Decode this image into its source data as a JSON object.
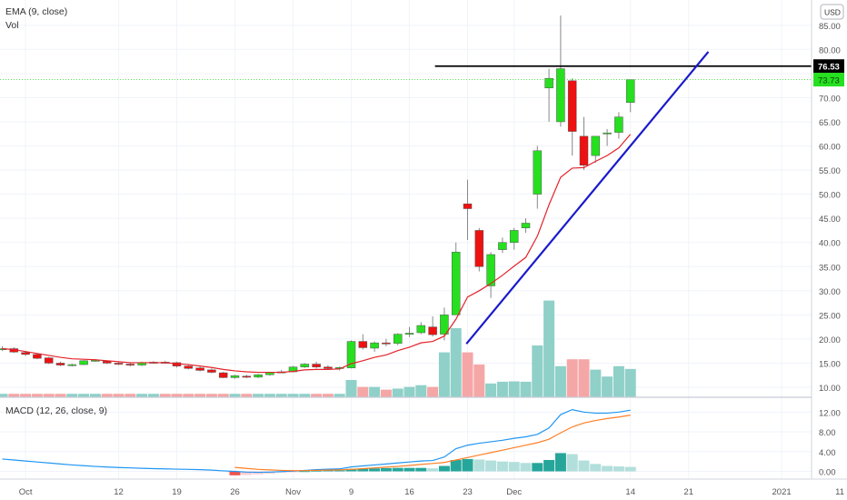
{
  "main_legend": [
    "EMA (9, close)",
    "Vol"
  ],
  "macd_legend": "MACD (12, 26, close, 9)",
  "currency_button": "USD",
  "price_axis": {
    "ticks": [
      "85.00",
      "80.00",
      "75.00",
      "70.00",
      "65.00",
      "60.00",
      "55.00",
      "50.00",
      "45.00",
      "40.00",
      "35.00",
      "30.00",
      "25.00",
      "20.00",
      "15.00",
      "10.00"
    ],
    "last_close_label": "73.73",
    "hline_label": "76.53"
  },
  "macd_axis": {
    "ticks": [
      "12.00",
      "8.00",
      "4.00",
      "0.00"
    ]
  },
  "time_axis": [
    {
      "label": "Oct",
      "bar": 2
    },
    {
      "label": "12",
      "bar": 10
    },
    {
      "label": "19",
      "bar": 15
    },
    {
      "label": "26",
      "bar": 20
    },
    {
      "label": "Nov",
      "bar": 25
    },
    {
      "label": "9",
      "bar": 30
    },
    {
      "label": "16",
      "bar": 35
    },
    {
      "label": "23",
      "bar": 40
    },
    {
      "label": "Dec",
      "bar": 44
    },
    {
      "label": "14",
      "bar": 54
    },
    {
      "label": "21",
      "bar": 59
    },
    {
      "label": "2021",
      "bar": 67
    },
    {
      "label": "11",
      "bar": 72
    }
  ],
  "colors": {
    "up": "#26e01f",
    "down": "#ee1111",
    "ema": "#e4232b",
    "trendline": "#1a1acc",
    "hline": "#000000",
    "macd": "#2196f3",
    "signal": "#ff7f26",
    "vol_up": "#8fd0c8",
    "vol_down": "#f5a6a6",
    "hist_dark": "#26a69a",
    "hist_light": "#b2dfdb",
    "hist_red_dark": "#ef5350",
    "hist_red_light": "#ffcdd2"
  },
  "chart_data": [
    {
      "type": "candlestick",
      "series_ohlc": [
        [
          18,
          18.5,
          17.5,
          18
        ],
        [
          18,
          18.3,
          17.1,
          17.3
        ],
        [
          17.2,
          17.5,
          16.5,
          16.8
        ],
        [
          16.8,
          17,
          15.8,
          16
        ],
        [
          16.1,
          16.3,
          14.8,
          15
        ],
        [
          15,
          15.3,
          14.4,
          14.6
        ],
        [
          14.6,
          14.9,
          14.3,
          14.7
        ],
        [
          14.7,
          15.6,
          14.6,
          15.5
        ],
        [
          15.5,
          15.8,
          15.3,
          15.6
        ],
        [
          15.4,
          15.6,
          14.8,
          15
        ],
        [
          15,
          15.2,
          14.6,
          14.9
        ],
        [
          14.8,
          15.2,
          14.3,
          14.6
        ],
        [
          14.6,
          15.3,
          14.4,
          15.1
        ],
        [
          15.1,
          15.4,
          14.9,
          15.2
        ],
        [
          15.2,
          15.5,
          14.9,
          15.1
        ],
        [
          15.1,
          15.3,
          14.1,
          14.4
        ],
        [
          14.4,
          14.7,
          13.7,
          13.9
        ],
        [
          14,
          14.3,
          13.3,
          13.5
        ],
        [
          13.6,
          13.9,
          12.9,
          13.1
        ],
        [
          13,
          13.2,
          11.9,
          12
        ],
        [
          12,
          12.6,
          11.8,
          12.4
        ],
        [
          12.3,
          12.6,
          11.9,
          12.1
        ],
        [
          12.1,
          12.8,
          11.9,
          12.6
        ],
        [
          12.6,
          13.2,
          12.4,
          13.1
        ],
        [
          13.1,
          13.6,
          12.9,
          13.2
        ],
        [
          13.2,
          14.4,
          13.1,
          14.2
        ],
        [
          14.2,
          15,
          14,
          14.8
        ],
        [
          14.8,
          15.3,
          13.9,
          14.2
        ],
        [
          14.2,
          14.6,
          13.7,
          13.9
        ],
        [
          14,
          14.3,
          13.5,
          14.1
        ],
        [
          14,
          19.7,
          13.9,
          19.5
        ],
        [
          19.5,
          21,
          17.8,
          18.2
        ],
        [
          18.1,
          19.5,
          17.3,
          19.2
        ],
        [
          19.2,
          20,
          18.5,
          19
        ],
        [
          19.1,
          21.2,
          18.7,
          21
        ],
        [
          21,
          22.5,
          20.4,
          21.2
        ],
        [
          21.3,
          23.5,
          21,
          22.8
        ],
        [
          22.5,
          24.7,
          20.5,
          20.9
        ],
        [
          21,
          26.5,
          19.7,
          25
        ],
        [
          25,
          40,
          25,
          38
        ],
        [
          48,
          53,
          40.5,
          47
        ],
        [
          42.5,
          43,
          34,
          35
        ],
        [
          31,
          38,
          28.5,
          37.5
        ],
        [
          38.5,
          41,
          37.8,
          40
        ],
        [
          40,
          43,
          38.5,
          42.5
        ],
        [
          43,
          45,
          42,
          44
        ],
        [
          50,
          60,
          47,
          59
        ],
        [
          72,
          76,
          65,
          74
        ],
        [
          65,
          87,
          64,
          76
        ],
        [
          73.5,
          74,
          58,
          63
        ],
        [
          62,
          66,
          55,
          56
        ],
        [
          58,
          62,
          56.5,
          62
        ],
        [
          62.5,
          63.5,
          60,
          62.7
        ],
        [
          62.8,
          67,
          61.5,
          66
        ],
        [
          69,
          73.73,
          67,
          73.73
        ]
      ],
      "ema": [
        18,
        17.8,
        17.4,
        17,
        16.6,
        16.2,
        15.9,
        15.8,
        15.7,
        15.5,
        15.3,
        15.1,
        15.1,
        15.1,
        15.1,
        14.9,
        14.7,
        14.4,
        14.1,
        13.7,
        13.4,
        13.2,
        13.1,
        13.1,
        13.1,
        13.3,
        13.6,
        13.7,
        13.7,
        13.8,
        14.9,
        15.5,
        16.2,
        16.7,
        17.6,
        18.3,
        19.2,
        19.5,
        20.6,
        24.1,
        28.7,
        30,
        31.5,
        33.2,
        35.1,
        36.9,
        41.3,
        47.8,
        53.5,
        55.4,
        55.5,
        56.8,
        58,
        59.6,
        62.4
      ],
      "volume": [
        1,
        1,
        1,
        1,
        1,
        1,
        1,
        1,
        1,
        1,
        1,
        1,
        1,
        1,
        1,
        1,
        1,
        1,
        1,
        1,
        1,
        1,
        1,
        1,
        1,
        1,
        1,
        1,
        1,
        1,
        5,
        3,
        3,
        2.2,
        2.5,
        3,
        3.5,
        3,
        13,
        20,
        13,
        9.5,
        4,
        4.5,
        4.6,
        4.5,
        15,
        28,
        9,
        11,
        11,
        8,
        6,
        9,
        8.2
      ]
    },
    {
      "type": "macd",
      "macd": [
        2.5,
        2.3,
        2.1,
        1.9,
        1.7,
        1.5,
        1.3,
        1.15,
        1.0,
        0.88,
        0.78,
        0.7,
        0.62,
        0.55,
        0.5,
        0.45,
        0.4,
        0.35,
        0.25,
        0.1,
        0,
        -0.15,
        -0.2,
        -0.15,
        -0.05,
        0.05,
        0.2,
        0.35,
        0.45,
        0.5,
        0.9,
        1.1,
        1.3,
        1.5,
        1.7,
        1.9,
        2.1,
        2.2,
        2.9,
        4.6,
        5.3,
        5.7,
        6.0,
        6.3,
        6.7,
        7.0,
        7.5,
        8.8,
        11.5,
        12.5,
        12.0,
        11.8,
        11.8,
        12.0,
        12.4
      ],
      "signal": [
        null,
        null,
        null,
        null,
        null,
        null,
        null,
        null,
        null,
        null,
        null,
        null,
        null,
        null,
        null,
        null,
        null,
        null,
        null,
        null,
        0.8,
        0.6,
        0.4,
        0.3,
        0.2,
        0.15,
        0.15,
        0.2,
        0.25,
        0.3,
        0.4,
        0.55,
        0.7,
        0.85,
        1.0,
        1.2,
        1.4,
        1.6,
        1.8,
        2.3,
        2.8,
        3.3,
        3.8,
        4.3,
        4.8,
        5.3,
        5.8,
        6.5,
        7.8,
        9.0,
        9.8,
        10.3,
        10.7,
        11.0,
        11.4
      ],
      "histogram": [
        null,
        null,
        null,
        null,
        null,
        null,
        null,
        null,
        null,
        null,
        null,
        null,
        null,
        null,
        null,
        null,
        null,
        null,
        null,
        null,
        -0.8,
        -0.75,
        -0.6,
        -0.45,
        -0.25,
        -0.1,
        0.05,
        0.15,
        0.2,
        0.2,
        0.5,
        0.55,
        0.6,
        0.65,
        0.7,
        0.7,
        0.7,
        0.6,
        1.1,
        2.3,
        2.5,
        2.4,
        2.2,
        2.0,
        1.9,
        1.7,
        1.7,
        2.3,
        3.7,
        3.5,
        2.2,
        1.5,
        1.1,
        1.0,
        0.9
      ]
    }
  ]
}
